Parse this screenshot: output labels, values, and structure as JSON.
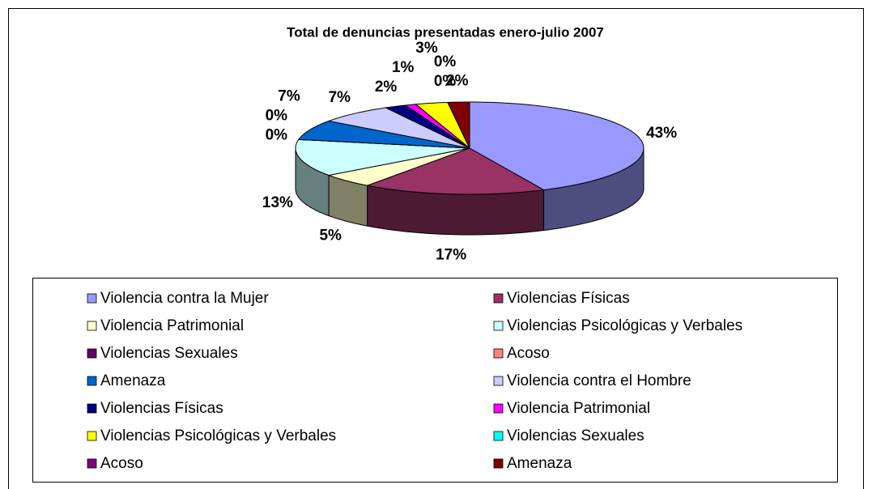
{
  "chart_data": {
    "type": "pie",
    "title": "Total de denuncias presentadas enero-julio 2007",
    "categories": [
      "Violencia contra la Mujer",
      "Violencias Físicas",
      "Violencia Patrimonial",
      "Violencias Psicológicas y Verbales",
      "Violencias Sexuales",
      "Acoso",
      "Amenaza",
      "Violencia contra el Hombre",
      "Violencias Físicas",
      "Violencia Patrimonial",
      "Violencias Psicológicas y Verbales",
      "Violencias Sexuales",
      "Acoso",
      "Amenaza"
    ],
    "values": [
      43,
      17,
      5,
      13,
      0,
      0,
      7,
      7,
      2,
      1,
      3,
      0,
      0,
      2
    ],
    "value_labels": [
      "43%",
      "17%",
      "5%",
      "13%",
      "0%",
      "0%",
      "7%",
      "7%",
      "2%",
      "1%",
      "3%",
      "0%",
      "0%",
      "2%"
    ],
    "colors": [
      "#9999FF",
      "#993366",
      "#FFFFCC",
      "#CCFFFF",
      "#660066",
      "#FF8080",
      "#0066CC",
      "#CCCCFF",
      "#000080",
      "#FF00FF",
      "#FFFF00",
      "#00FFFF",
      "#800080",
      "#800000"
    ],
    "legend": "bottom"
  }
}
